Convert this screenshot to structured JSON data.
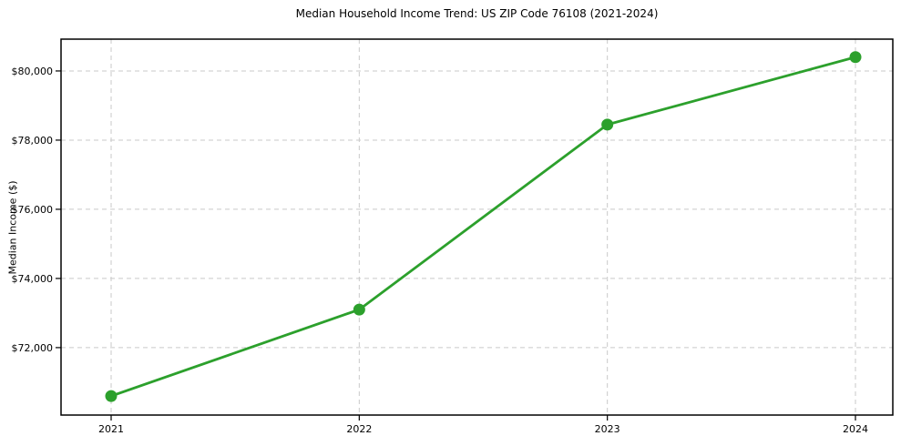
{
  "chart_data": {
    "type": "line",
    "title": "Median Household Income Trend: US ZIP Code 76108 (2021-2024)",
    "xlabel": "",
    "ylabel": "Median Income ($)",
    "categories": [
      "2021",
      "2022",
      "2023",
      "2024"
    ],
    "values": [
      70600,
      73100,
      78450,
      80400
    ],
    "y_ticks": {
      "values": [
        72000,
        74000,
        76000,
        78000,
        80000
      ],
      "labels": [
        "$72,000",
        "$74,000",
        "$76,000",
        "$78,000",
        "$80,000"
      ]
    },
    "ylim": [
      70050,
      80920
    ],
    "legend": "none",
    "grid": {
      "visible": true,
      "style": "dashed",
      "color": "#c9c9c9"
    },
    "line_color": "#2ca02c",
    "marker": "circle",
    "frame_color": "#000000",
    "background": "#ffffff"
  }
}
